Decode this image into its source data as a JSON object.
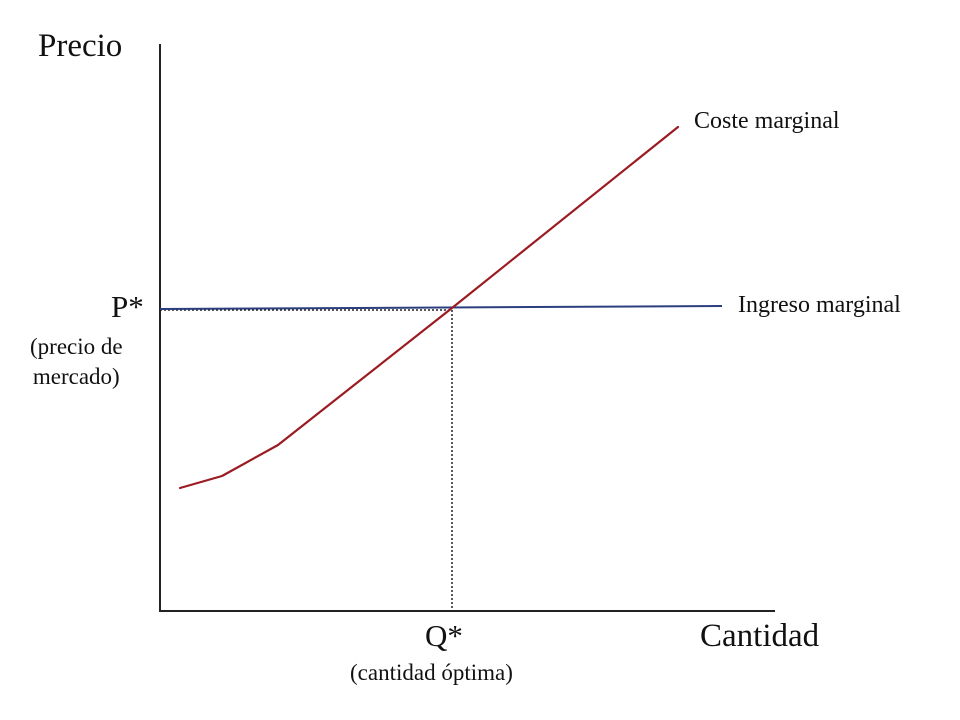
{
  "axes": {
    "y_title": "Precio",
    "x_title": "Cantidad"
  },
  "equilibrium": {
    "price_label": "P*",
    "price_note_line1": "(precio de",
    "price_note_line2": "mercado)",
    "quantity_label": "Q*",
    "quantity_note": "(cantidad óptima)"
  },
  "curves": {
    "marginal_cost": {
      "label": "Coste marginal",
      "color": "#9b1b22"
    },
    "marginal_revenue": {
      "label": "Ingreso marginal",
      "color": "#2b3f7e"
    }
  },
  "colors": {
    "axis": "#222222",
    "guide": "#222222"
  }
}
